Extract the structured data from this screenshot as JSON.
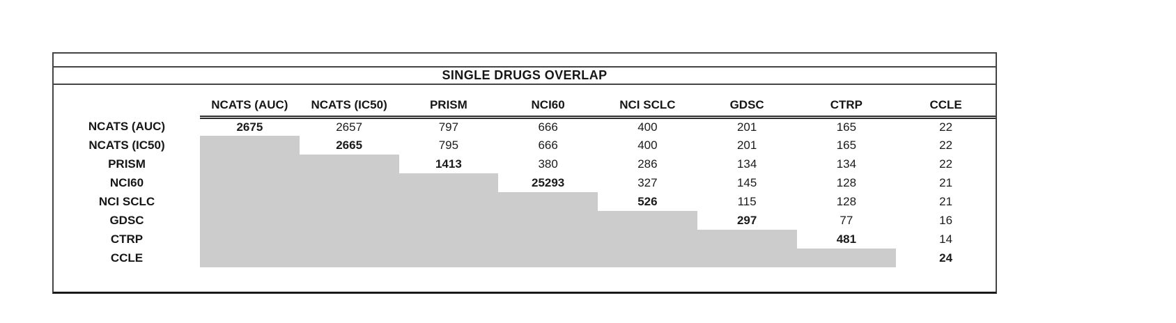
{
  "title": "SINGLE DRUGS OVERLAP",
  "table": {
    "columns": [
      "NCATS (AUC)",
      "NCATS (IC50)",
      "PRISM",
      "NCI60",
      "NCI SCLC",
      "GDSC",
      "CTRP",
      "CCLE"
    ],
    "rows": [
      {
        "label": "NCATS (AUC)",
        "values": [
          2675,
          2657,
          797,
          666,
          400,
          201,
          165,
          22
        ]
      },
      {
        "label": "NCATS (IC50)",
        "values": [
          null,
          2665,
          795,
          666,
          400,
          201,
          165,
          22
        ]
      },
      {
        "label": "PRISM",
        "values": [
          null,
          null,
          1413,
          380,
          286,
          134,
          134,
          22
        ]
      },
      {
        "label": "NCI60",
        "values": [
          null,
          null,
          null,
          25293,
          327,
          145,
          128,
          21
        ]
      },
      {
        "label": "NCI SCLC",
        "values": [
          null,
          null,
          null,
          null,
          526,
          115,
          128,
          21
        ]
      },
      {
        "label": "GDSC",
        "values": [
          null,
          null,
          null,
          null,
          null,
          297,
          77,
          16
        ]
      },
      {
        "label": "CTRP",
        "values": [
          null,
          null,
          null,
          null,
          null,
          null,
          481,
          14
        ]
      },
      {
        "label": "CCLE",
        "values": [
          null,
          null,
          null,
          null,
          null,
          null,
          null,
          24
        ]
      }
    ]
  },
  "colors": {
    "shaded_cell": "#cccccc",
    "border": "#444444",
    "text": "#1b1b1b"
  },
  "chart_data": {
    "type": "table",
    "title": "SINGLE DRUGS OVERLAP",
    "columns": [
      "NCATS (AUC)",
      "NCATS (IC50)",
      "PRISM",
      "NCI60",
      "NCI SCLC",
      "GDSC",
      "CTRP",
      "CCLE"
    ],
    "row_labels": [
      "NCATS (AUC)",
      "NCATS (IC50)",
      "PRISM",
      "NCI60",
      "NCI SCLC",
      "GDSC",
      "CTRP",
      "CCLE"
    ],
    "matrix": [
      [
        2675,
        2657,
        797,
        666,
        400,
        201,
        165,
        22
      ],
      [
        null,
        2665,
        795,
        666,
        400,
        201,
        165,
        22
      ],
      [
        null,
        null,
        1413,
        380,
        286,
        134,
        134,
        22
      ],
      [
        null,
        null,
        null,
        25293,
        327,
        145,
        128,
        21
      ],
      [
        null,
        null,
        null,
        null,
        526,
        115,
        128,
        21
      ],
      [
        null,
        null,
        null,
        null,
        null,
        297,
        77,
        16
      ],
      [
        null,
        null,
        null,
        null,
        null,
        null,
        481,
        14
      ],
      [
        null,
        null,
        null,
        null,
        null,
        null,
        null,
        24
      ]
    ],
    "layout": {
      "diagonal_bold": true,
      "lower_triangle_shaded": true,
      "shade_color": "#cccccc",
      "header_rule": "double",
      "grid": false
    }
  }
}
